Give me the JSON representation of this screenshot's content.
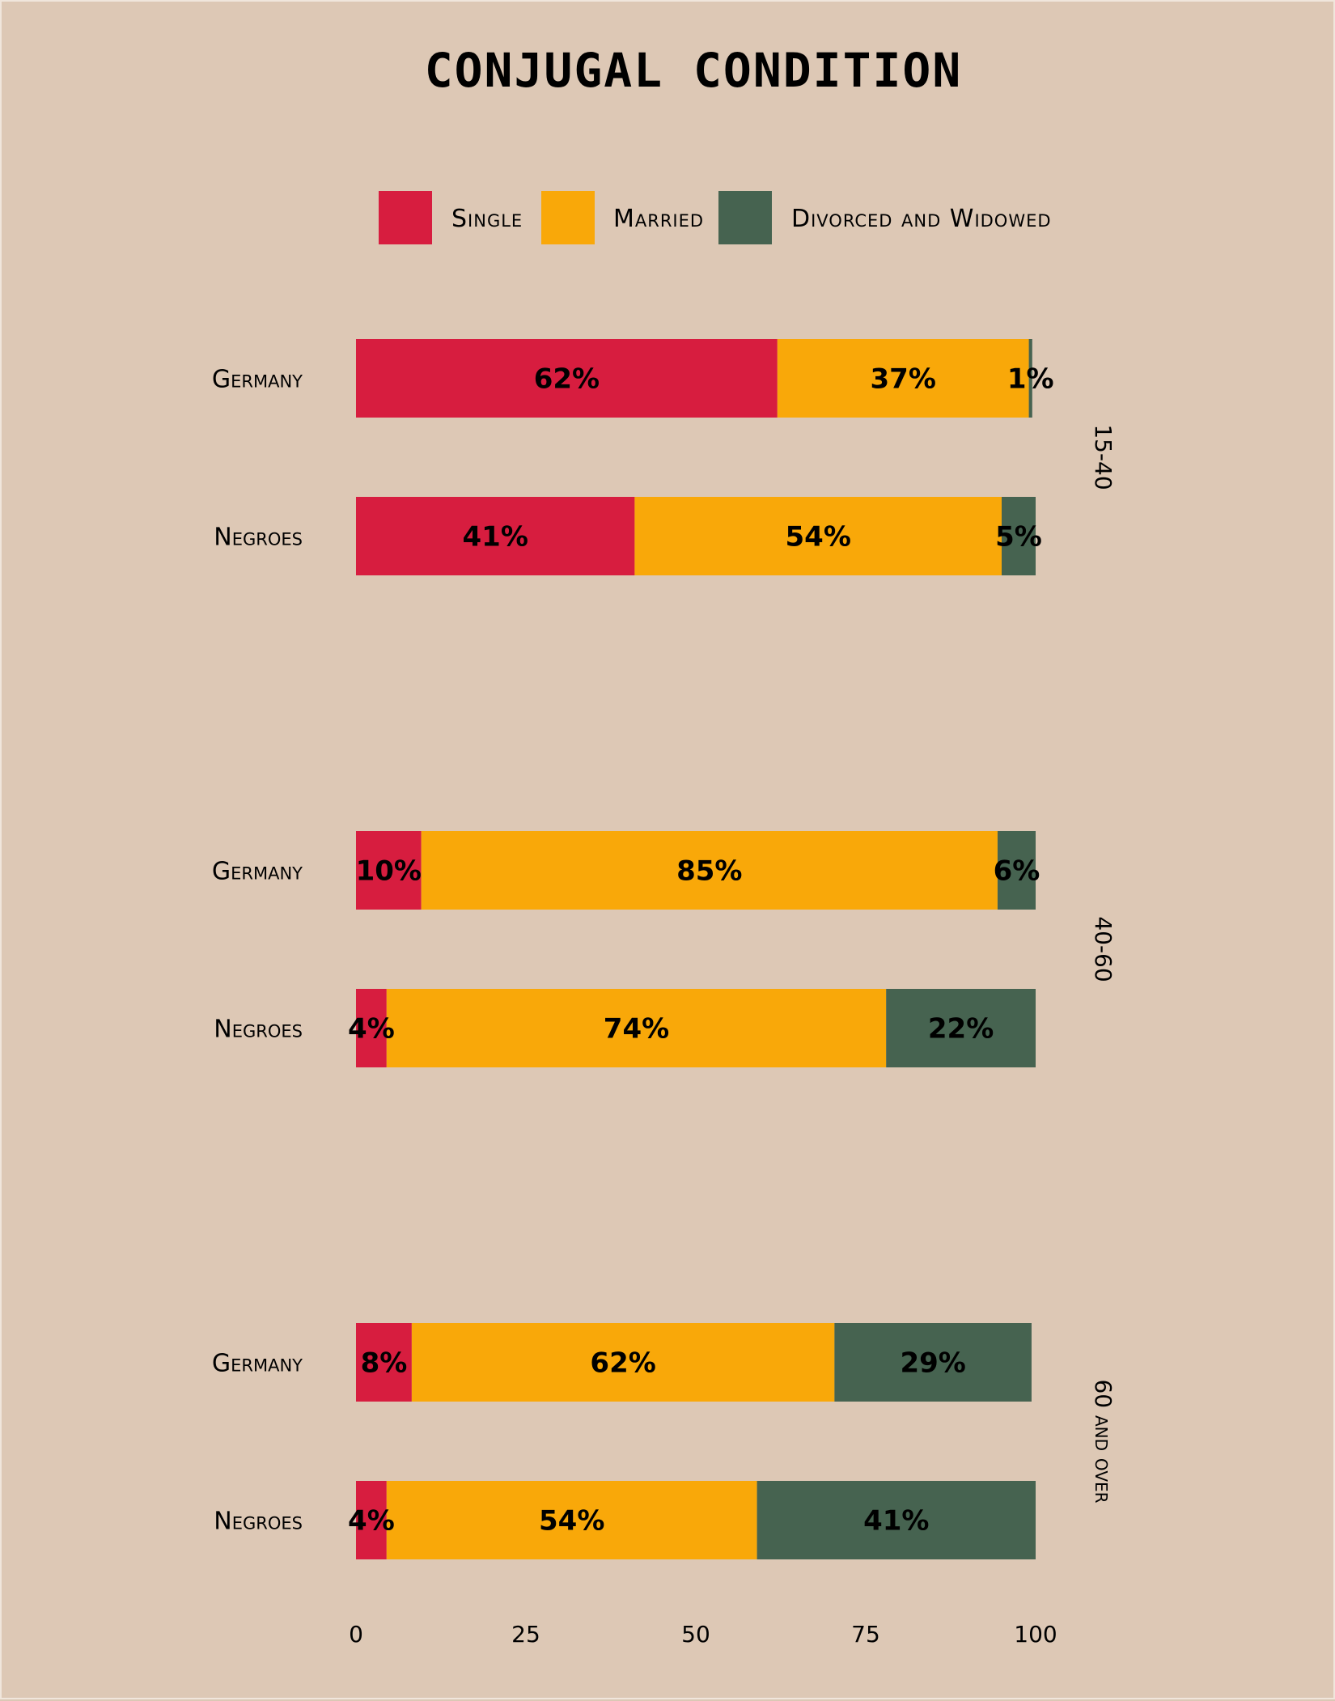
{
  "colors": {
    "background": "#ddc8b5",
    "single": "#d71d3f",
    "married": "#f9a809",
    "divorced": "#466350"
  },
  "chart_data": {
    "type": "bar",
    "orientation": "horizontal",
    "stacked": true,
    "title": "CONJUGAL CONDITION",
    "xlim": [
      0,
      100
    ],
    "xticks": [
      "0",
      "25",
      "50",
      "75",
      "100"
    ],
    "grid": false,
    "legend_placement": "top-center",
    "series": [
      {
        "name": "Single",
        "color": "#d71d3f"
      },
      {
        "name": "Married",
        "color": "#f9a809"
      },
      {
        "name": "Divorced and Widowed",
        "color": "#466350"
      }
    ],
    "groups": [
      {
        "label": "15-40",
        "rows": [
          {
            "category": "Germany",
            "values": [
              62,
              37,
              0.5
            ],
            "labels": [
              "62%",
              "37%",
              "1%"
            ]
          },
          {
            "category": "Negroes",
            "values": [
              41,
              54,
              5
            ],
            "labels": [
              "41%",
              "54%",
              "5%"
            ]
          }
        ]
      },
      {
        "label": "40-60",
        "rows": [
          {
            "category": "Germany",
            "values": [
              9.6,
              84.8,
              5.6
            ],
            "labels": [
              "10%",
              "85%",
              "6%"
            ]
          },
          {
            "category": "Negroes",
            "values": [
              4.5,
              73.5,
              22
            ],
            "labels": [
              "4%",
              "74%",
              "22%"
            ]
          }
        ]
      },
      {
        "label": "60 and over",
        "rows": [
          {
            "category": "Germany",
            "values": [
              8.2,
              62.2,
              29
            ],
            "labels": [
              "8%",
              "62%",
              "29%"
            ]
          },
          {
            "category": "Negroes",
            "values": [
              4.5,
              54.5,
              41
            ],
            "labels": [
              "4%",
              "54%",
              "41%"
            ]
          }
        ]
      }
    ]
  }
}
